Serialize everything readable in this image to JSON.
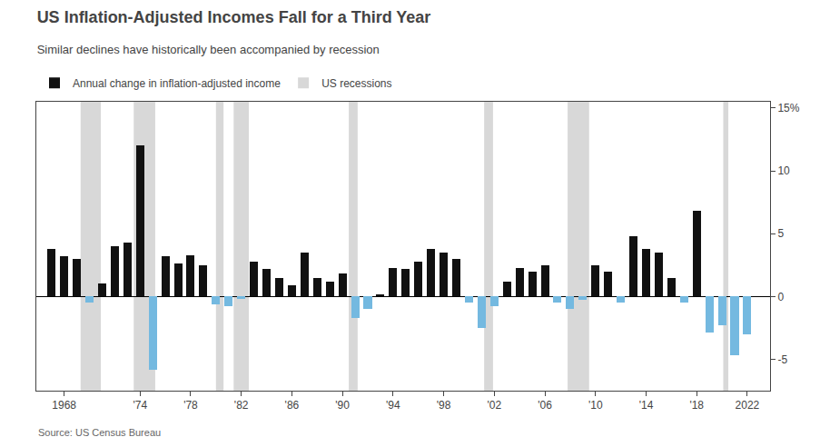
{
  "chart_data": {
    "type": "bar",
    "title": "US Inflation-Adjusted Incomes Fall for a Third Year",
    "subtitle": "Similar declines have historically been accompanied by recession",
    "source": "Source: US Census Bureau",
    "x": [
      1967,
      1968,
      1969,
      1970,
      1971,
      1972,
      1973,
      1974,
      1975,
      1976,
      1977,
      1978,
      1979,
      1980,
      1981,
      1982,
      1983,
      1984,
      1985,
      1986,
      1987,
      1988,
      1989,
      1990,
      1991,
      1992,
      1993,
      1994,
      1995,
      1996,
      1997,
      1998,
      1999,
      2000,
      2001,
      2002,
      2003,
      2004,
      2005,
      2006,
      2007,
      2008,
      2009,
      2010,
      2011,
      2012,
      2013,
      2014,
      2015,
      2016,
      2017,
      2018,
      2019,
      2020,
      2021,
      2022
    ],
    "series": [
      {
        "name": "Annual change in inflation-adjusted income",
        "values": [
          3.8,
          3.2,
          3.0,
          -0.5,
          1.0,
          4.0,
          4.3,
          12.0,
          -5.8,
          3.2,
          2.6,
          3.3,
          2.5,
          -0.6,
          -0.8,
          -0.2,
          2.8,
          2.2,
          1.5,
          0.9,
          3.5,
          1.5,
          1.2,
          1.8,
          -1.7,
          -1.0,
          0.2,
          2.3,
          2.2,
          2.8,
          3.8,
          3.5,
          3.0,
          -0.5,
          -2.5,
          -0.8,
          1.2,
          2.3,
          2.0,
          2.5,
          -0.5,
          -1.0,
          -0.3,
          2.5,
          2.0,
          -0.5,
          4.8,
          3.8,
          3.5,
          1.5,
          -0.5,
          6.8,
          -2.9,
          -2.3,
          -4.7,
          -3.0
        ],
        "colors": [
          "#111111",
          "#111111",
          "#111111",
          "#74b9e0",
          "#111111",
          "#111111",
          "#111111",
          "#111111",
          "#74b9e0",
          "#111111",
          "#111111",
          "#111111",
          "#111111",
          "#74b9e0",
          "#74b9e0",
          "#74b9e0",
          "#111111",
          "#111111",
          "#111111",
          "#111111",
          "#111111",
          "#111111",
          "#111111",
          "#111111",
          "#74b9e0",
          "#74b9e0",
          "#111111",
          "#111111",
          "#111111",
          "#111111",
          "#111111",
          "#111111",
          "#111111",
          "#74b9e0",
          "#74b9e0",
          "#74b9e0",
          "#111111",
          "#111111",
          "#111111",
          "#111111",
          "#74b9e0",
          "#74b9e0",
          "#74b9e0",
          "#111111",
          "#111111",
          "#74b9e0",
          "#111111",
          "#111111",
          "#111111",
          "#111111",
          "#74b9e0",
          "#111111",
          "#74b9e0",
          "#74b9e0",
          "#74b9e0",
          "#74b9e0"
        ]
      }
    ],
    "recessions": {
      "name": "US recessions",
      "color": "#d8d8d8",
      "spans": [
        [
          1969.3,
          1970.9
        ],
        [
          1973.5,
          1975.2
        ],
        [
          1980.0,
          1980.6
        ],
        [
          1981.4,
          1982.6
        ],
        [
          1990.5,
          1991.2
        ],
        [
          2001.2,
          2001.9
        ],
        [
          2007.8,
          2009.5
        ],
        [
          2020.1,
          2020.5
        ]
      ]
    },
    "xlim": [
      1965.8,
      2023.8
    ],
    "xticks": [
      1968,
      {
        "value": 1974,
        "label": "'74"
      },
      {
        "value": 1978,
        "label": "'78"
      },
      {
        "value": 1982,
        "label": "'82"
      },
      {
        "value": 1986,
        "label": "'86"
      },
      {
        "value": 1990,
        "label": "'90"
      },
      {
        "value": 1994,
        "label": "'94"
      },
      {
        "value": 1998,
        "label": "'98"
      },
      {
        "value": 2002,
        "label": "'02"
      },
      {
        "value": 2006,
        "label": "'06"
      },
      {
        "value": 2010,
        "label": "'10"
      },
      {
        "value": 2014,
        "label": "'14"
      },
      {
        "value": 2018,
        "label": "'18"
      },
      2022
    ],
    "ylim": [
      -7.5,
      15.5
    ],
    "yticks": [
      -5,
      0,
      5,
      10,
      {
        "value": 15,
        "label": "15%"
      }
    ],
    "grid": false,
    "legend": "upper left"
  }
}
